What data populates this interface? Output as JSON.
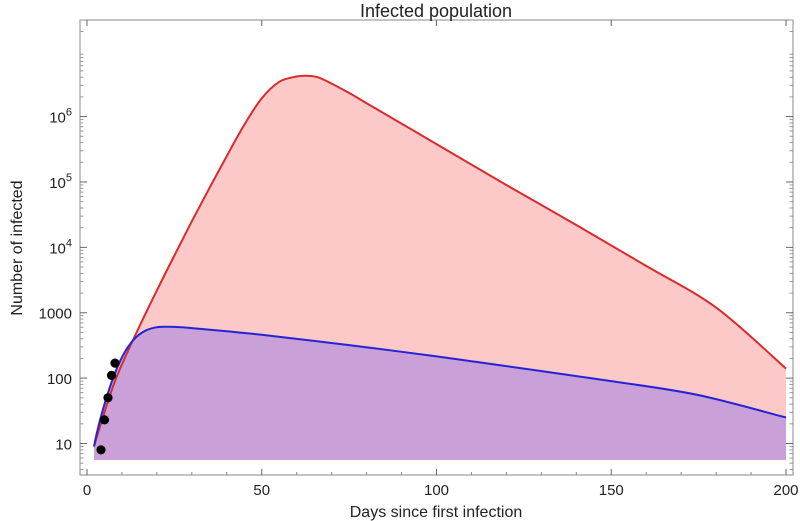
{
  "chart_data": {
    "type": "area",
    "title": "Infected population",
    "xlabel": "Days since first infection",
    "ylabel": "Number of infected",
    "xlim": [
      -2,
      202
    ],
    "ylim": [
      3.3,
      30000000
    ],
    "yscale": "log",
    "grid": false,
    "xticks": [
      0,
      50,
      100,
      150,
      200
    ],
    "xtick_labels": [
      "0",
      "50",
      "100",
      "150",
      "200"
    ],
    "yticks": [
      10,
      100,
      1000,
      10000,
      100000,
      1000000
    ],
    "ytick_labels": [
      {
        "base": "10",
        "exp": ""
      },
      {
        "base": "100",
        "exp": ""
      },
      {
        "base": "1000",
        "exp": ""
      },
      {
        "base": "10",
        "exp": "4"
      },
      {
        "base": "10",
        "exp": "5"
      },
      {
        "base": "10",
        "exp": "6"
      }
    ],
    "series": [
      {
        "type": "area",
        "line_color": "#d92b2b",
        "fill_color": "#fcc8c8",
        "x": [
          2,
          5,
          8,
          12,
          16,
          20,
          25,
          30,
          35,
          40,
          45,
          50,
          55,
          60,
          63,
          66,
          70,
          75,
          80,
          90,
          100,
          120,
          140,
          160,
          180,
          200
        ],
        "y": [
          9,
          30,
          90,
          280,
          800,
          2200,
          7500,
          25000,
          80000,
          250000,
          750000,
          1900000,
          3400000,
          4100000,
          4200000,
          4000000,
          3200000,
          2300000,
          1600000,
          780000,
          380000,
          90000,
          22000,
          5200,
          1200,
          140
        ]
      },
      {
        "type": "area",
        "line_color": "#2424d6",
        "fill_color": "#c9a0d8",
        "x": [
          2,
          3,
          5,
          8,
          11,
          14,
          17,
          20,
          23,
          27,
          32,
          40,
          50,
          75,
          100,
          125,
          150,
          175,
          200
        ],
        "y": [
          9,
          16,
          40,
          120,
          260,
          420,
          540,
          600,
          610,
          600,
          570,
          520,
          460,
          320,
          215,
          140,
          90,
          55,
          25
        ]
      },
      {
        "type": "scatter",
        "color": "#000000",
        "x": [
          4,
          5,
          6,
          7,
          8
        ],
        "y": [
          8,
          23,
          50,
          110,
          170
        ]
      }
    ]
  }
}
